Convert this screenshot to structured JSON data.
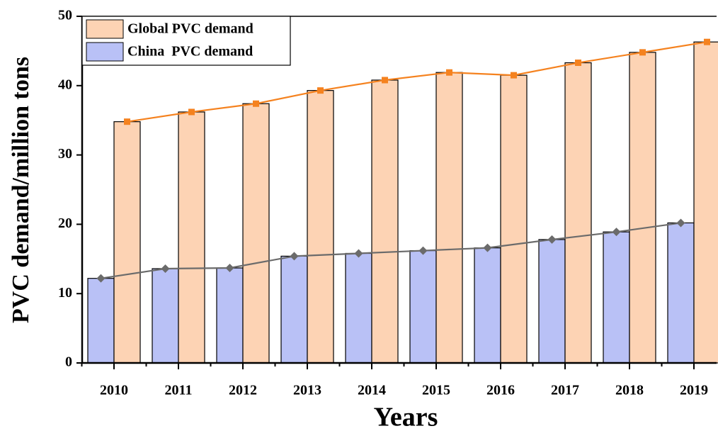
{
  "chart_data": {
    "type": "bar",
    "overlay_line": true,
    "x_label": "Years",
    "y_label": "PVC demand/million tons",
    "categories": [
      "2010",
      "2011",
      "2012",
      "2013",
      "2014",
      "2015",
      "2016",
      "2017",
      "2018",
      "2019"
    ],
    "series": [
      {
        "name": "China  PVC demand",
        "color": "#b9c1f6",
        "line_color": "#6b6b6b",
        "marker": "diamond",
        "values": [
          12.2,
          13.6,
          13.7,
          15.4,
          15.8,
          16.2,
          16.6,
          17.8,
          18.9,
          20.2
        ]
      },
      {
        "name": "Global PVC demand",
        "color": "#fdd3b4",
        "line_color": "#f5821f",
        "marker": "square",
        "values": [
          34.8,
          36.2,
          37.4,
          39.3,
          40.8,
          41.9,
          41.5,
          43.3,
          44.8,
          46.3
        ]
      }
    ],
    "legend_order": [
      1,
      0
    ],
    "legend_position": "upper left",
    "ylim": [
      0,
      50
    ],
    "yticks": [
      0,
      10,
      20,
      30,
      40,
      50
    ]
  }
}
